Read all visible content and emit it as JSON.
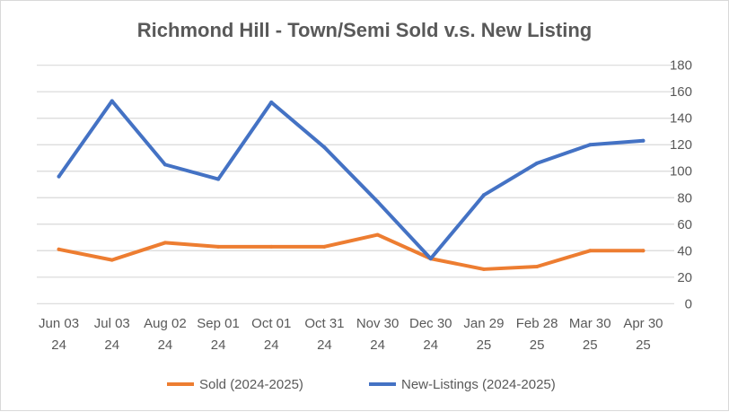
{
  "chart_data": {
    "type": "line",
    "title": "Richmond Hill - Town/Semi Sold v.s. New Listing",
    "xlabel": "",
    "ylabel": "",
    "categories": [
      [
        "Jun 03",
        "24"
      ],
      [
        "Jul 03",
        "24"
      ],
      [
        "Aug 02",
        "24"
      ],
      [
        "Sep 01",
        "24"
      ],
      [
        "Oct 01",
        "24"
      ],
      [
        "Oct 31",
        "24"
      ],
      [
        "Nov 30",
        "24"
      ],
      [
        "Dec 30",
        "24"
      ],
      [
        "Jan 29",
        "25"
      ],
      [
        "Feb 28",
        "25"
      ],
      [
        "Mar 30",
        "25"
      ],
      [
        "Apr 30",
        "25"
      ]
    ],
    "ylim": [
      0,
      180
    ],
    "yticks": [
      0,
      20,
      40,
      60,
      80,
      100,
      120,
      140,
      160,
      180
    ],
    "y_axis_side": "right",
    "grid": true,
    "legend_position": "bottom",
    "series": [
      {
        "name": "Sold (2024-2025)",
        "color": "#ed7d31",
        "values": [
          41,
          33,
          46,
          43,
          43,
          43,
          52,
          34,
          26,
          28,
          40,
          40
        ]
      },
      {
        "name": "New-Listings (2024-2025)",
        "color": "#4472c4",
        "values": [
          96,
          153,
          105,
          94,
          152,
          118,
          77,
          34,
          82,
          106,
          120,
          123
        ]
      }
    ]
  }
}
